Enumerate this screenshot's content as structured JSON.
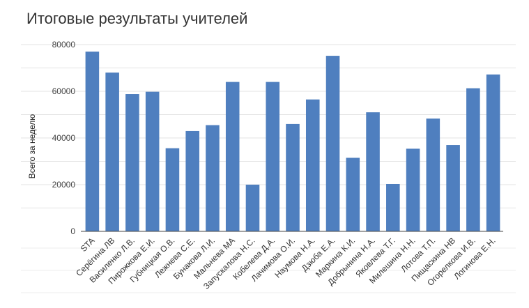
{
  "chart_data": {
    "type": "bar",
    "title": "Итоговые результаты учителей",
    "xlabel": "",
    "ylabel": "Всего за неделю",
    "ylim": [
      0,
      80000
    ],
    "yticks": [
      0,
      20000,
      40000,
      60000,
      80000
    ],
    "grid": true,
    "bar_color": "#4f7fbf",
    "categories": [
      "STA",
      "Серёгина ЛВ",
      "Василенко Л.В.",
      "Пирожкова Е.И.",
      "Губницкая О.В.",
      "Лежнева С.Е.",
      "Бунакова Л.И.",
      "Мальнева МА",
      "Запускалова Н.С.",
      "Кобелева Д.А.",
      "Лачимова О.И.",
      "Наумова Н.А.",
      "Дзюба Е.А.",
      "Маркина К.И.",
      "Добрынина Н.А.",
      "Яковлева Т.Г.",
      "Милешина Н.Н.",
      "Лотова Т.П.",
      "Пищаскина НВ",
      "Огорелкова И.В.",
      "Логинова Е.Н."
    ],
    "values": [
      77000,
      68000,
      58800,
      59800,
      35600,
      43000,
      45500,
      64000,
      20000,
      64000,
      46000,
      56500,
      75200,
      31500,
      51000,
      20300,
      35400,
      48300,
      37000,
      61300,
      67200
    ]
  }
}
